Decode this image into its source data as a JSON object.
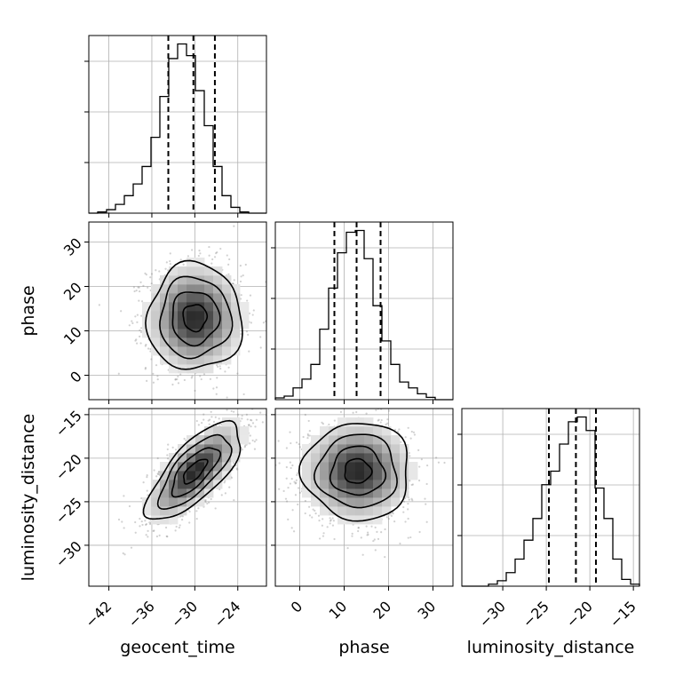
{
  "chart_data": {
    "type": "corner",
    "parameters": [
      "geocent_time",
      "phase",
      "luminosity_distance"
    ],
    "axis_labels": {
      "geocent_time": "geocent_time",
      "phase": "phase",
      "luminosity_distance": "luminosity_distance"
    },
    "ranges": {
      "geocent_time": [
        -44.8,
        -20.0
      ],
      "phase": [
        -5.5,
        34.5
      ],
      "luminosity_distance": [
        -34.7,
        -14.3
      ]
    },
    "ticks": {
      "geocent_time": [
        -42,
        -36,
        -30,
        -24
      ],
      "phase": [
        0,
        10,
        20,
        30
      ],
      "luminosity_distance": [
        -30,
        -25,
        -20,
        -15
      ]
    },
    "tick_labels": {
      "geocent_time": [
        "−42",
        "−36",
        "−30",
        "−24"
      ],
      "phase": [
        "0",
        "10",
        "20",
        "30"
      ],
      "luminosity_distance": [
        "−30",
        "−25",
        "−20",
        "−15"
      ]
    },
    "histograms": [
      {
        "parameter": "geocent_time",
        "bin_counts": [
          0,
          0.2,
          0.6,
          1.5,
          3,
          5,
          8,
          13,
          20,
          26.5,
          29,
          27,
          21,
          15,
          8,
          3,
          1,
          0.2,
          0,
          0
        ],
        "quantiles": [
          -33.7,
          -30.2,
          -27.2
        ]
      },
      {
        "parameter": "phase",
        "bin_counts": [
          0.3,
          0.6,
          2,
          3.5,
          6,
          12,
          19,
          25,
          28.5,
          28.8,
          24,
          16,
          10,
          6,
          3,
          2,
          1,
          0.4,
          0,
          0
        ],
        "quantiles": [
          7.8,
          12.8,
          18.2
        ]
      },
      {
        "parameter": "luminosity_distance",
        "bin_counts": [
          0,
          0,
          0,
          0.3,
          0.8,
          2,
          4,
          6.8,
          10,
          15,
          17,
          21,
          24.3,
          25,
          23,
          14.5,
          10,
          4,
          1,
          0.3
        ],
        "quantiles": [
          -24.7,
          -21.6,
          -19.3
        ]
      }
    ],
    "scatter_2d": [
      {
        "x": "geocent_time",
        "y": "phase",
        "mean": [
          -30.0,
          13.0
        ],
        "sd": [
          3.3,
          6.0
        ],
        "corr": 0.0
      },
      {
        "x": "geocent_time",
        "y": "luminosity_distance",
        "mean": [
          -30.0,
          -21.5
        ],
        "sd": [
          3.3,
          2.8
        ],
        "corr": 0.72
      },
      {
        "x": "phase",
        "y": "luminosity_distance",
        "mean": [
          13.0,
          -21.5
        ],
        "sd": [
          6.0,
          2.8
        ],
        "corr": 0.0
      }
    ],
    "contour_levels": [
      0.5,
      1.0,
      1.5,
      2.0
    ],
    "grid": true,
    "legend": "none"
  }
}
